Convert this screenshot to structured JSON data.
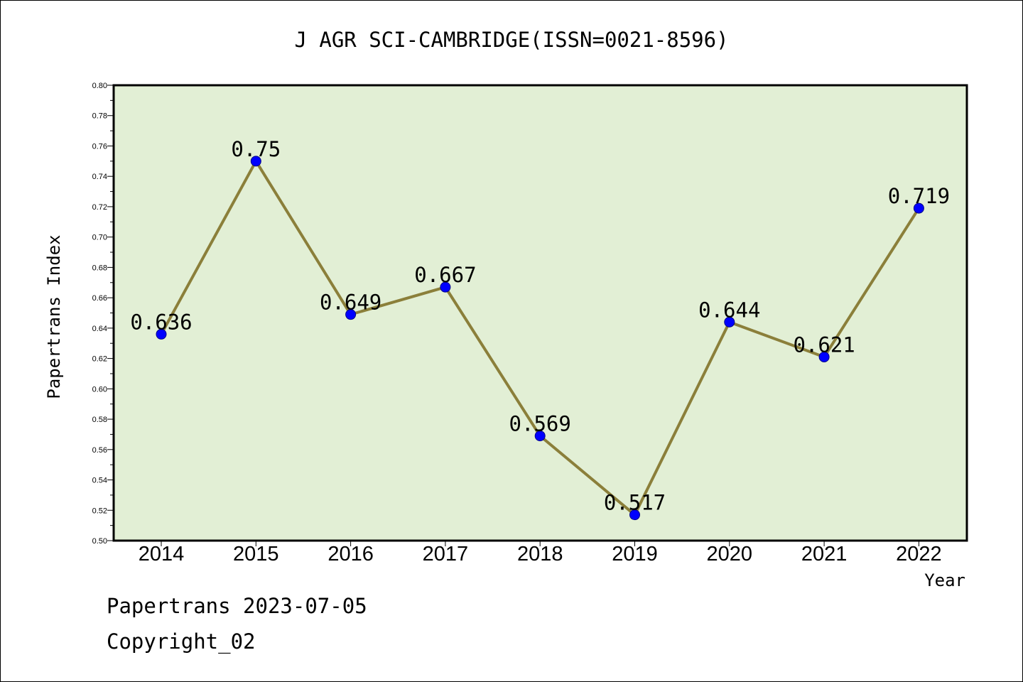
{
  "chart_data": {
    "type": "line",
    "title": "J AGR SCI-CAMBRIDGE(ISSN=0021-8596)",
    "xlabel": "Year",
    "ylabel": "Papertrans Index",
    "categories": [
      "2014",
      "2015",
      "2016",
      "2017",
      "2018",
      "2019",
      "2020",
      "2021",
      "2022"
    ],
    "values": [
      0.636,
      0.75,
      0.649,
      0.667,
      0.569,
      0.517,
      0.644,
      0.621,
      0.719
    ],
    "data_labels": [
      "0.636",
      "0.75",
      "0.649",
      "0.667",
      "0.569",
      "0.517",
      "0.644",
      "0.621",
      "0.719"
    ],
    "ylim": [
      0.5,
      0.8
    ],
    "yticks": [
      "0.50",
      "0.52",
      "0.54",
      "0.56",
      "0.58",
      "0.60",
      "0.62",
      "0.64",
      "0.66",
      "0.68",
      "0.70",
      "0.72",
      "0.74",
      "0.76",
      "0.78",
      "0.80"
    ],
    "grid": false,
    "colors": {
      "plot_background": "#e2efd5",
      "line": "#8b7f3a",
      "marker": "#0000ff",
      "marker_edge": "#00008b"
    }
  },
  "footer": {
    "line1": "Papertrans 2023-07-05",
    "line2": "Copyright_02"
  }
}
